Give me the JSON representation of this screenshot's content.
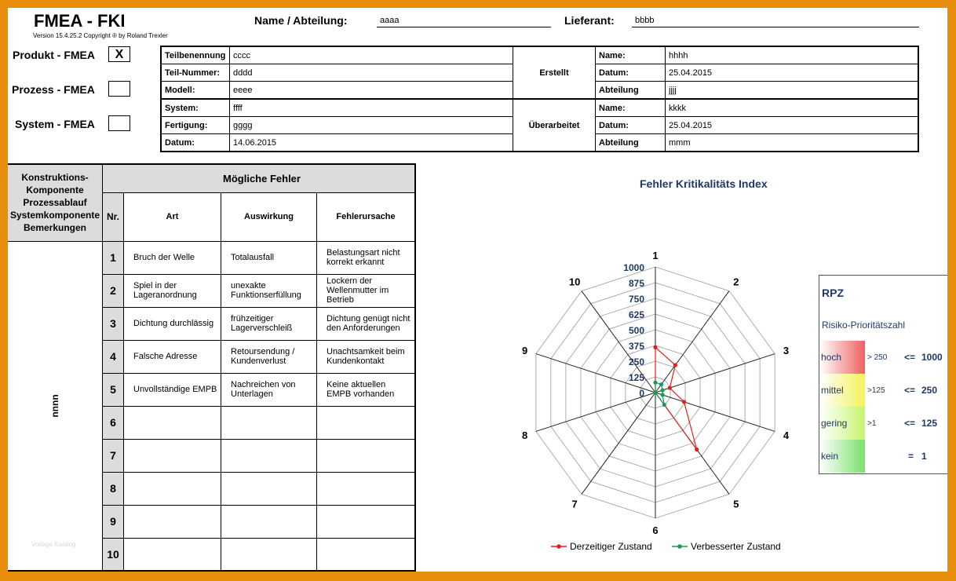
{
  "header": {
    "title": "FMEA - FKI",
    "version": "Version 15.4.25.2 Copyright ® by Roland Trexler",
    "name_label": "Name / Abteilung:",
    "name_value": "aaaa",
    "lieferant_label": "Lieferant:",
    "lieferant_value": "bbbb"
  },
  "fmea_types": [
    {
      "label": "Produkt - FMEA",
      "value": "X"
    },
    {
      "label": "Prozess - FMEA",
      "value": ""
    },
    {
      "label": "System - FMEA",
      "value": ""
    }
  ],
  "part_info": [
    {
      "label": "Teilbenennung",
      "value": "cccc"
    },
    {
      "label": "Teil-Nummer:",
      "value": "dddd"
    },
    {
      "label": "Modell:",
      "value": "eeee"
    },
    {
      "label": "System:",
      "value": "ffff"
    },
    {
      "label": "Fertigung:",
      "value": "gggg"
    },
    {
      "label": "Datum:",
      "value": "14.06.2015"
    }
  ],
  "erstellt": {
    "title": "Erstellt",
    "rows": [
      {
        "label": "Name:",
        "value": "hhhh"
      },
      {
        "label": "Datum:",
        "value": "25.04.2015"
      },
      {
        "label": "Abteilung",
        "value": "jjjj"
      }
    ]
  },
  "ueberarbeitet": {
    "title": "Überarbeitet",
    "rows": [
      {
        "label": "Name:",
        "value": "kkkk"
      },
      {
        "label": "Datum:",
        "value": "25.04.2015"
      },
      {
        "label": "Abteilung",
        "value": "mmm"
      }
    ]
  },
  "fault_table": {
    "left_header": "Konstruktions-\nKomponente\nProzessablauf\nSystemkomponente\nBemerkungen",
    "left_value": "nnnn",
    "watermark": "Vorlage Katalog",
    "group_header": "Mögliche Fehler",
    "col_nr": "Nr.",
    "col_art": "Art",
    "col_auswirkung": "Auswirkung",
    "col_ursache": "Fehlerursache",
    "rows": [
      {
        "nr": "1",
        "art": "Bruch der Welle",
        "auswirkung": "Totalausfall",
        "ursache": "Belastungsart nicht korrekt erkannt"
      },
      {
        "nr": "2",
        "art": "Spiel in der Lageranordnung",
        "auswirkung": "unexakte Funktionserfüllung",
        "ursache": "Lockern der Wellenmutter im Betrieb"
      },
      {
        "nr": "3",
        "art": "Dichtung durchlässig",
        "auswirkung": "frühzeitiger Lagerverschleiß",
        "ursache": "Dichtung genügt nicht den Anforderungen"
      },
      {
        "nr": "4",
        "art": "Falsche Adresse",
        "auswirkung": "Retoursendung / Kundenverlust",
        "ursache": "Unachtsamkeit beim Kundenkontakt"
      },
      {
        "nr": "5",
        "art": "Unvollständige EMPB",
        "auswirkung": "Nachreichen von Unterlagen",
        "ursache": "Keine aktuellen EMPB vorhanden"
      },
      {
        "nr": "6",
        "art": "",
        "auswirkung": "",
        "ursache": ""
      },
      {
        "nr": "7",
        "art": "",
        "auswirkung": "",
        "ursache": ""
      },
      {
        "nr": "8",
        "art": "",
        "auswirkung": "",
        "ursache": ""
      },
      {
        "nr": "9",
        "art": "",
        "auswirkung": "",
        "ursache": ""
      },
      {
        "nr": "10",
        "art": "",
        "auswirkung": "",
        "ursache": ""
      }
    ]
  },
  "rpz_legend": {
    "title": "RPZ",
    "subtitle": "Risiko-Prioritätszahl",
    "rows": [
      {
        "name": "hoch",
        "range": "> 250",
        "op": "<=",
        "value": "1000",
        "color": "#f06060"
      },
      {
        "name": "mittel",
        "range": ">125",
        "op": "<=",
        "value": "250",
        "color": "#f3f35a"
      },
      {
        "name": "gering",
        "range": ">1",
        "op": "<=",
        "value": "125",
        "color": "#c6f56e"
      },
      {
        "name": "kein",
        "range": "",
        "op": "=",
        "value": "1",
        "color": "#7be06a"
      }
    ]
  },
  "chart_data": {
    "type": "radar",
    "title": "Fehler Kritikalitäts Index",
    "categories": [
      "1",
      "2",
      "3",
      "4",
      "5",
      "6",
      "7",
      "8",
      "9",
      "10"
    ],
    "rlim": [
      0,
      1000
    ],
    "ticks": [
      "0",
      "125",
      "250",
      "375",
      "500",
      "625",
      "750",
      "875",
      "1000"
    ],
    "legend_position": "bottom",
    "series": [
      {
        "name": "Derzeitiger Zustand",
        "color": "#e02020",
        "values": [
          360,
          270,
          120,
          240,
          560,
          0,
          0,
          0,
          0,
          0
        ]
      },
      {
        "name": "Verbesserter Zustand",
        "color": "#1a9a5a",
        "values": [
          80,
          80,
          60,
          60,
          120,
          0,
          0,
          0,
          0,
          0
        ]
      }
    ]
  }
}
